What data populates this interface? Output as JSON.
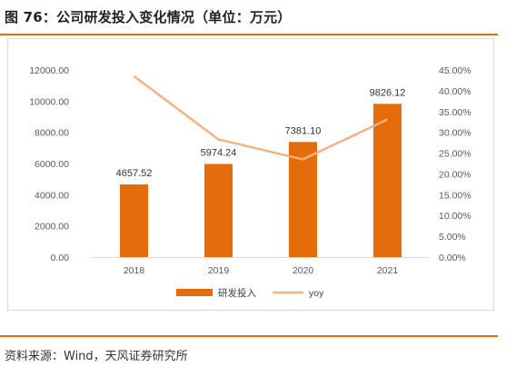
{
  "figure": {
    "title": "图 76：公司研发投入变化情况（单位：万元）",
    "source": "资料来源：Wind，天风证券研究所"
  },
  "colors": {
    "bar": "#e46c0a",
    "line": "#f4b183",
    "rule": "#e46c0a",
    "axis_text": "#595959"
  },
  "chart_data": {
    "type": "bar",
    "categories": [
      "2018",
      "2019",
      "2020",
      "2021"
    ],
    "series": [
      {
        "name": "研发投入",
        "type": "bar",
        "axis": "left",
        "values": [
          4657.52,
          5974.24,
          7381.1,
          9826.12
        ],
        "labels": [
          "4657.52",
          "5974.24",
          "7381.10",
          "9826.12"
        ]
      },
      {
        "name": "yoy",
        "type": "line",
        "axis": "right",
        "values": [
          43.5,
          28.3,
          23.5,
          33.1
        ]
      }
    ],
    "y_left": {
      "ylim": [
        0,
        12000
      ],
      "ticks": [
        "0.00",
        "2000.00",
        "4000.00",
        "6000.00",
        "8000.00",
        "10000.00",
        "12000.00"
      ]
    },
    "y_right": {
      "ylim": [
        0,
        45
      ],
      "ticks": [
        "0.00%",
        "5.00%",
        "10.00%",
        "15.00%",
        "20.00%",
        "25.00%",
        "30.00%",
        "35.00%",
        "40.00%",
        "45.00%"
      ]
    },
    "grid": false,
    "legend_position": "bottom"
  }
}
